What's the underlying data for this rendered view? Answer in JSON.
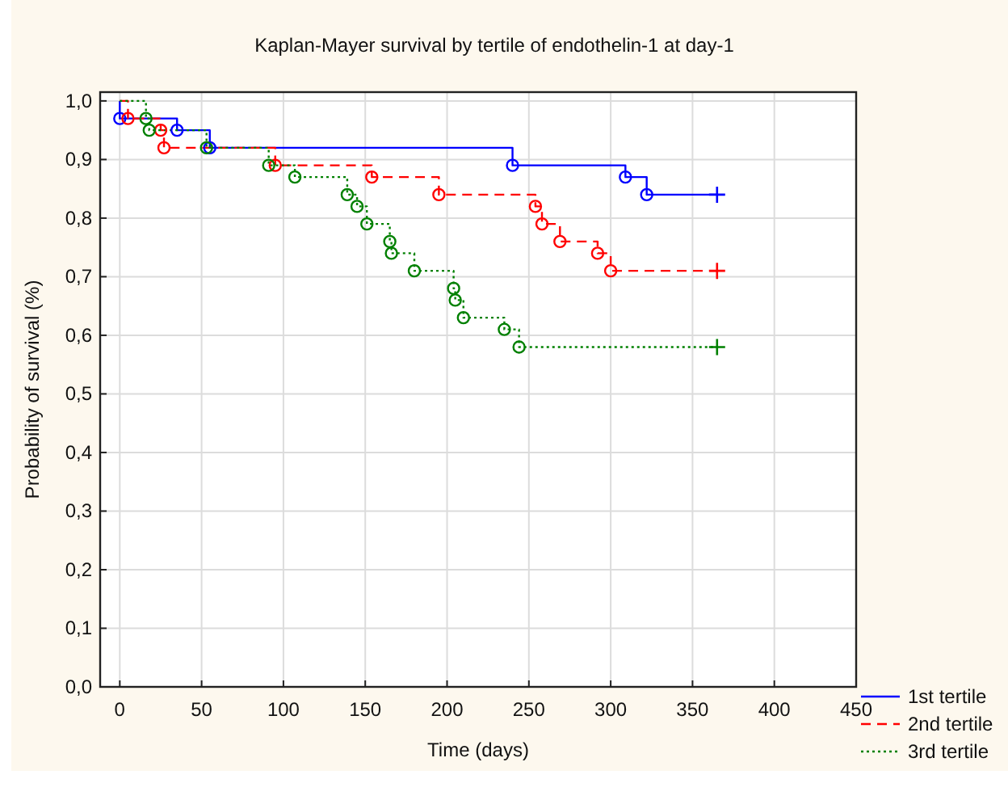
{
  "chart_data": {
    "type": "step",
    "title": "Kaplan-Mayer survival by tertile of endothelin-1 at day-1",
    "xlabel": "Time (days)",
    "ylabel": "Probability of survival (%)",
    "xlim": [
      -12,
      450
    ],
    "xticks": [
      0,
      50,
      100,
      150,
      200,
      250,
      300,
      350,
      400,
      450
    ],
    "ylim": [
      0,
      1.015
    ],
    "yticks": [
      {
        "value": 0,
        "label": "0,0"
      },
      {
        "value": 0.1,
        "label": "0,1"
      },
      {
        "value": 0.2,
        "label": "0,2"
      },
      {
        "value": 0.3,
        "label": "0,3"
      },
      {
        "value": 0.4,
        "label": "0,4"
      },
      {
        "value": 0.5,
        "label": "0,5"
      },
      {
        "value": 0.6,
        "label": "0,6"
      },
      {
        "value": 0.7,
        "label": "0,7"
      },
      {
        "value": 0.8,
        "label": "0,8"
      },
      {
        "value": 0.9,
        "label": "0,9"
      },
      {
        "value": 1,
        "label": "1,0"
      }
    ],
    "grid": true,
    "legend": "bottom right",
    "marker": "none",
    "series": [
      {
        "name": "1st tertile",
        "color": "#0000ff",
        "line_style": "solid",
        "x": [
          0,
          0,
          35,
          55,
          240,
          309,
          322,
          365
        ],
        "values": [
          1,
          0.97,
          0.95,
          0.92,
          0.89,
          0.87,
          0.84,
          0.84
        ]
      },
      {
        "name": "2nd tertile",
        "color": "#ff0000",
        "line_style": "dashed",
        "x": [
          0,
          5,
          25,
          27,
          95,
          154,
          195,
          254,
          258,
          269,
          292,
          300,
          365
        ],
        "values": [
          1,
          0.97,
          0.95,
          0.92,
          0.89,
          0.87,
          0.84,
          0.82,
          0.79,
          0.76,
          0.74,
          0.71,
          0.71
        ]
      },
      {
        "name": "3rd tertile",
        "color": "#008000",
        "line_style": "dotted",
        "x": [
          0,
          16,
          18,
          53,
          91,
          107,
          139,
          145,
          151,
          165,
          166,
          180,
          204,
          205,
          210,
          235,
          244,
          365
        ],
        "values": [
          1,
          0.97,
          0.95,
          0.92,
          0.89,
          0.87,
          0.84,
          0.82,
          0.79,
          0.76,
          0.74,
          0.71,
          0.68,
          0.66,
          0.63,
          0.61,
          0.58,
          0.58
        ]
      },
      {
        "type": "scatter",
        "marker": "circle",
        "color": "#0000ff",
        "x": [
          0,
          35,
          55,
          240,
          309,
          322
        ],
        "values": [
          0.97,
          0.95,
          0.92,
          0.89,
          0.87,
          0.84
        ]
      },
      {
        "type": "scatter",
        "marker": "circle",
        "color": "#ff0000",
        "x": [
          5,
          25,
          27,
          95,
          154,
          195,
          254,
          258,
          269,
          292,
          300
        ],
        "values": [
          0.97,
          0.95,
          0.92,
          0.89,
          0.87,
          0.84,
          0.82,
          0.79,
          0.76,
          0.74,
          0.71
        ]
      },
      {
        "type": "scatter",
        "marker": "circle",
        "color": "#008000",
        "x": [
          16,
          18,
          53,
          91,
          107,
          139,
          145,
          151,
          165,
          166,
          180,
          204,
          205,
          210,
          235,
          244
        ],
        "values": [
          0.97,
          0.95,
          0.92,
          0.89,
          0.87,
          0.84,
          0.82,
          0.79,
          0.76,
          0.74,
          0.71,
          0.68,
          0.66,
          0.63,
          0.61,
          0.58
        ]
      },
      {
        "type": "scatter",
        "marker": "cross",
        "color": "#0000ff",
        "x": [
          365
        ],
        "values": [
          0.84
        ]
      },
      {
        "type": "scatter",
        "marker": "cross",
        "color": "#ff0000",
        "x": [
          365
        ],
        "values": [
          0.71
        ]
      },
      {
        "type": "scatter",
        "marker": "cross",
        "color": "#008000",
        "x": [
          365
        ],
        "values": [
          0.58
        ]
      }
    ]
  }
}
